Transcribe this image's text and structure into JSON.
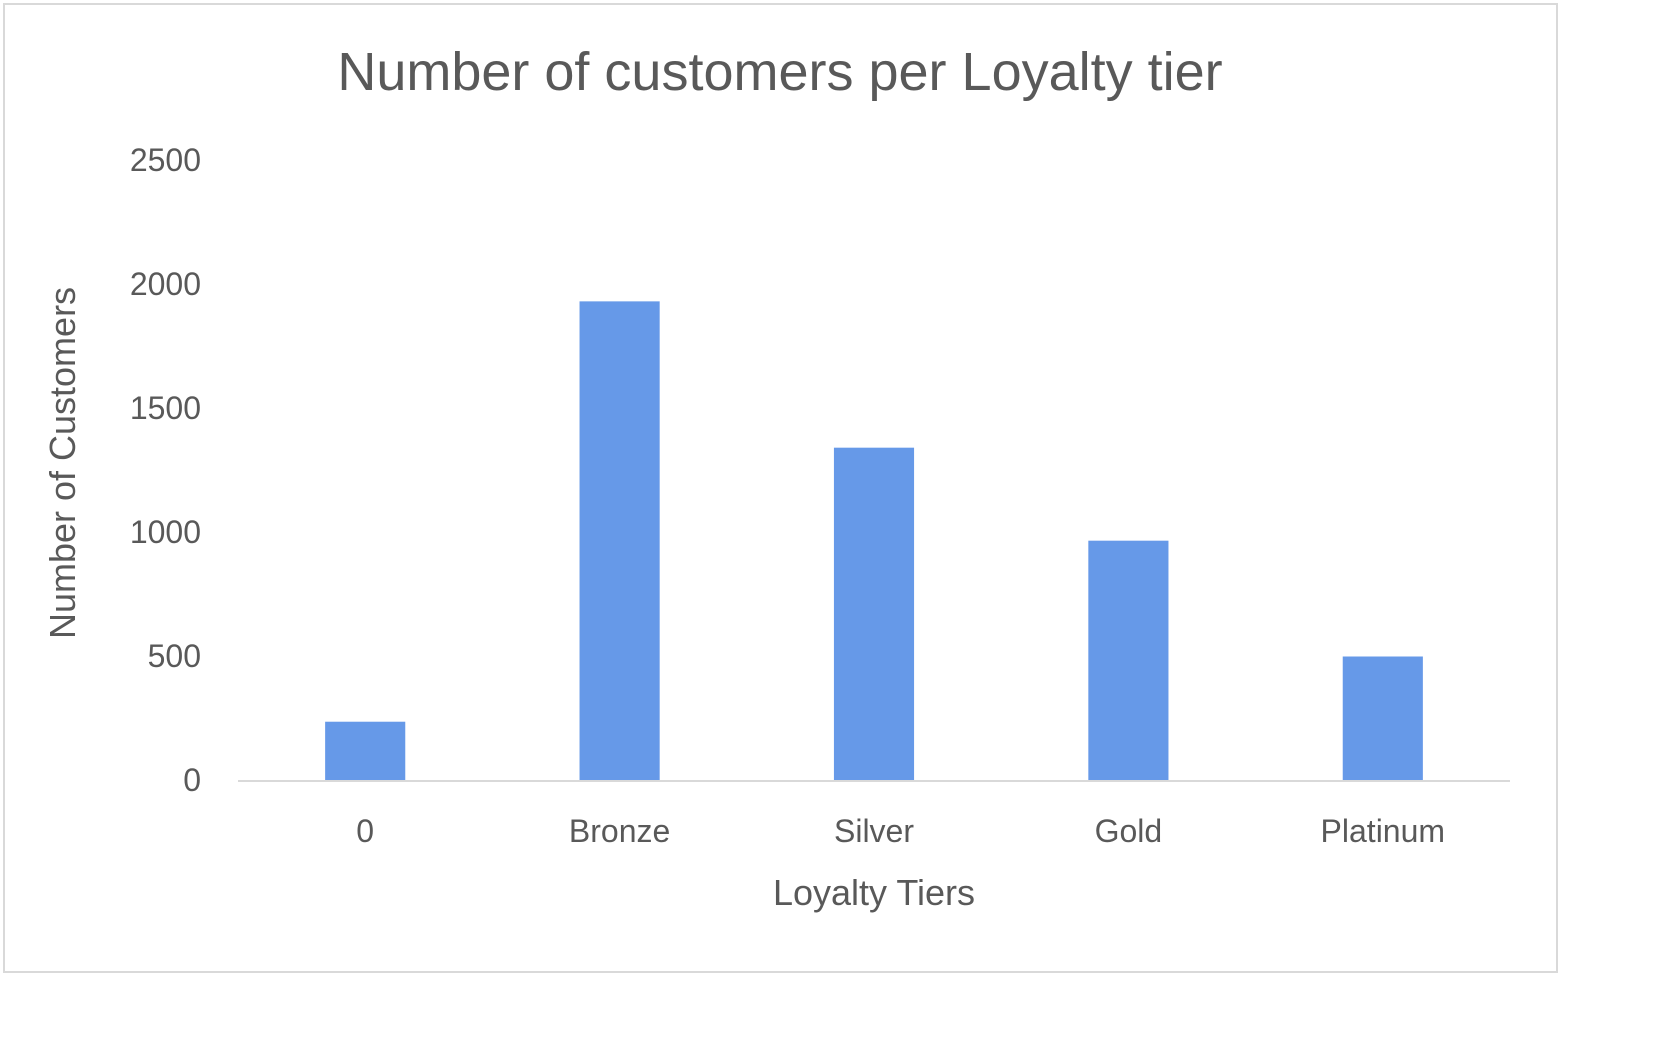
{
  "chart_data": {
    "type": "bar",
    "title": "Number of customers per Loyalty tier",
    "xlabel": "Loyalty Tiers",
    "ylabel": "Number of Customers",
    "categories": [
      "0",
      "Bronze",
      "Silver",
      "Gold",
      "Platinum"
    ],
    "values": [
      235,
      1930,
      1340,
      965,
      498
    ],
    "ylim": [
      0,
      2500
    ],
    "yticks": [
      0,
      500,
      1000,
      1500,
      2000,
      2500
    ],
    "ytick_labels": [
      "0",
      "500",
      "1000",
      "1500",
      "2000",
      "2500"
    ],
    "grid": false,
    "legend": "none",
    "bar_color": "#6699e8",
    "axis_color": "#d9d9d9",
    "text_color": "#595959"
  }
}
